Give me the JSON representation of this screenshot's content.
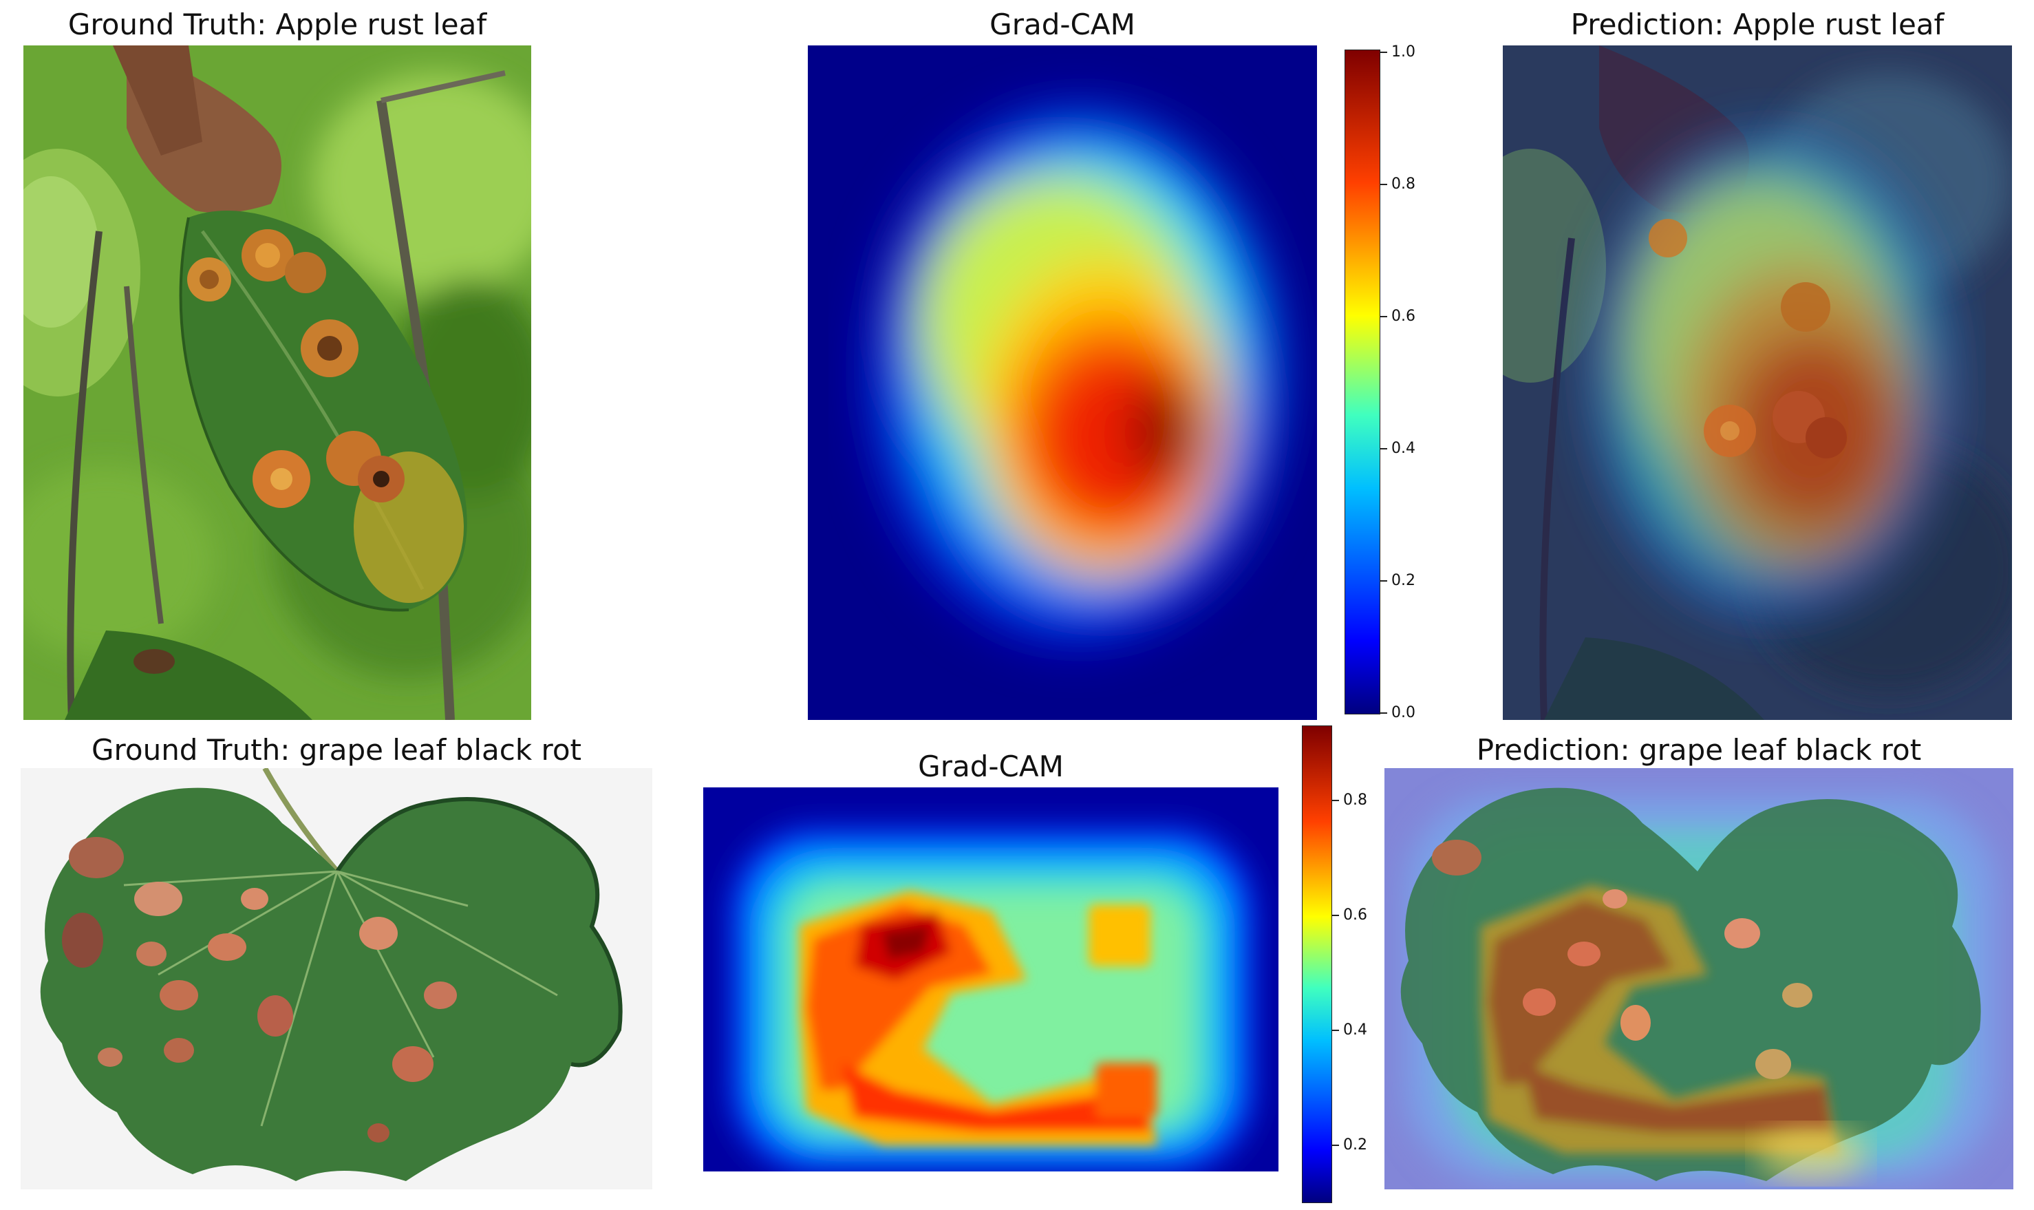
{
  "row1": {
    "ground_truth_title": "Ground Truth: Apple rust leaf",
    "gradcam_title": "Grad-CAM",
    "prediction_title": "Prediction: Apple rust leaf",
    "colorbar_ticks": [
      "1.0",
      "0.8",
      "0.6",
      "0.4",
      "0.2",
      "0.0"
    ]
  },
  "row2": {
    "ground_truth_title": "Ground Truth: grape leaf black rot",
    "gradcam_title": "Grad-CAM",
    "prediction_title": "Prediction: grape leaf black rot",
    "colorbar_ticks": [
      "0.8",
      "0.6",
      "0.4",
      "0.2"
    ]
  },
  "colormap": [
    "#00007f",
    "#0000ff",
    "#007fff",
    "#00ffff",
    "#7fff7f",
    "#ffff00",
    "#ff7f00",
    "#ff0000",
    "#7f0000"
  ]
}
